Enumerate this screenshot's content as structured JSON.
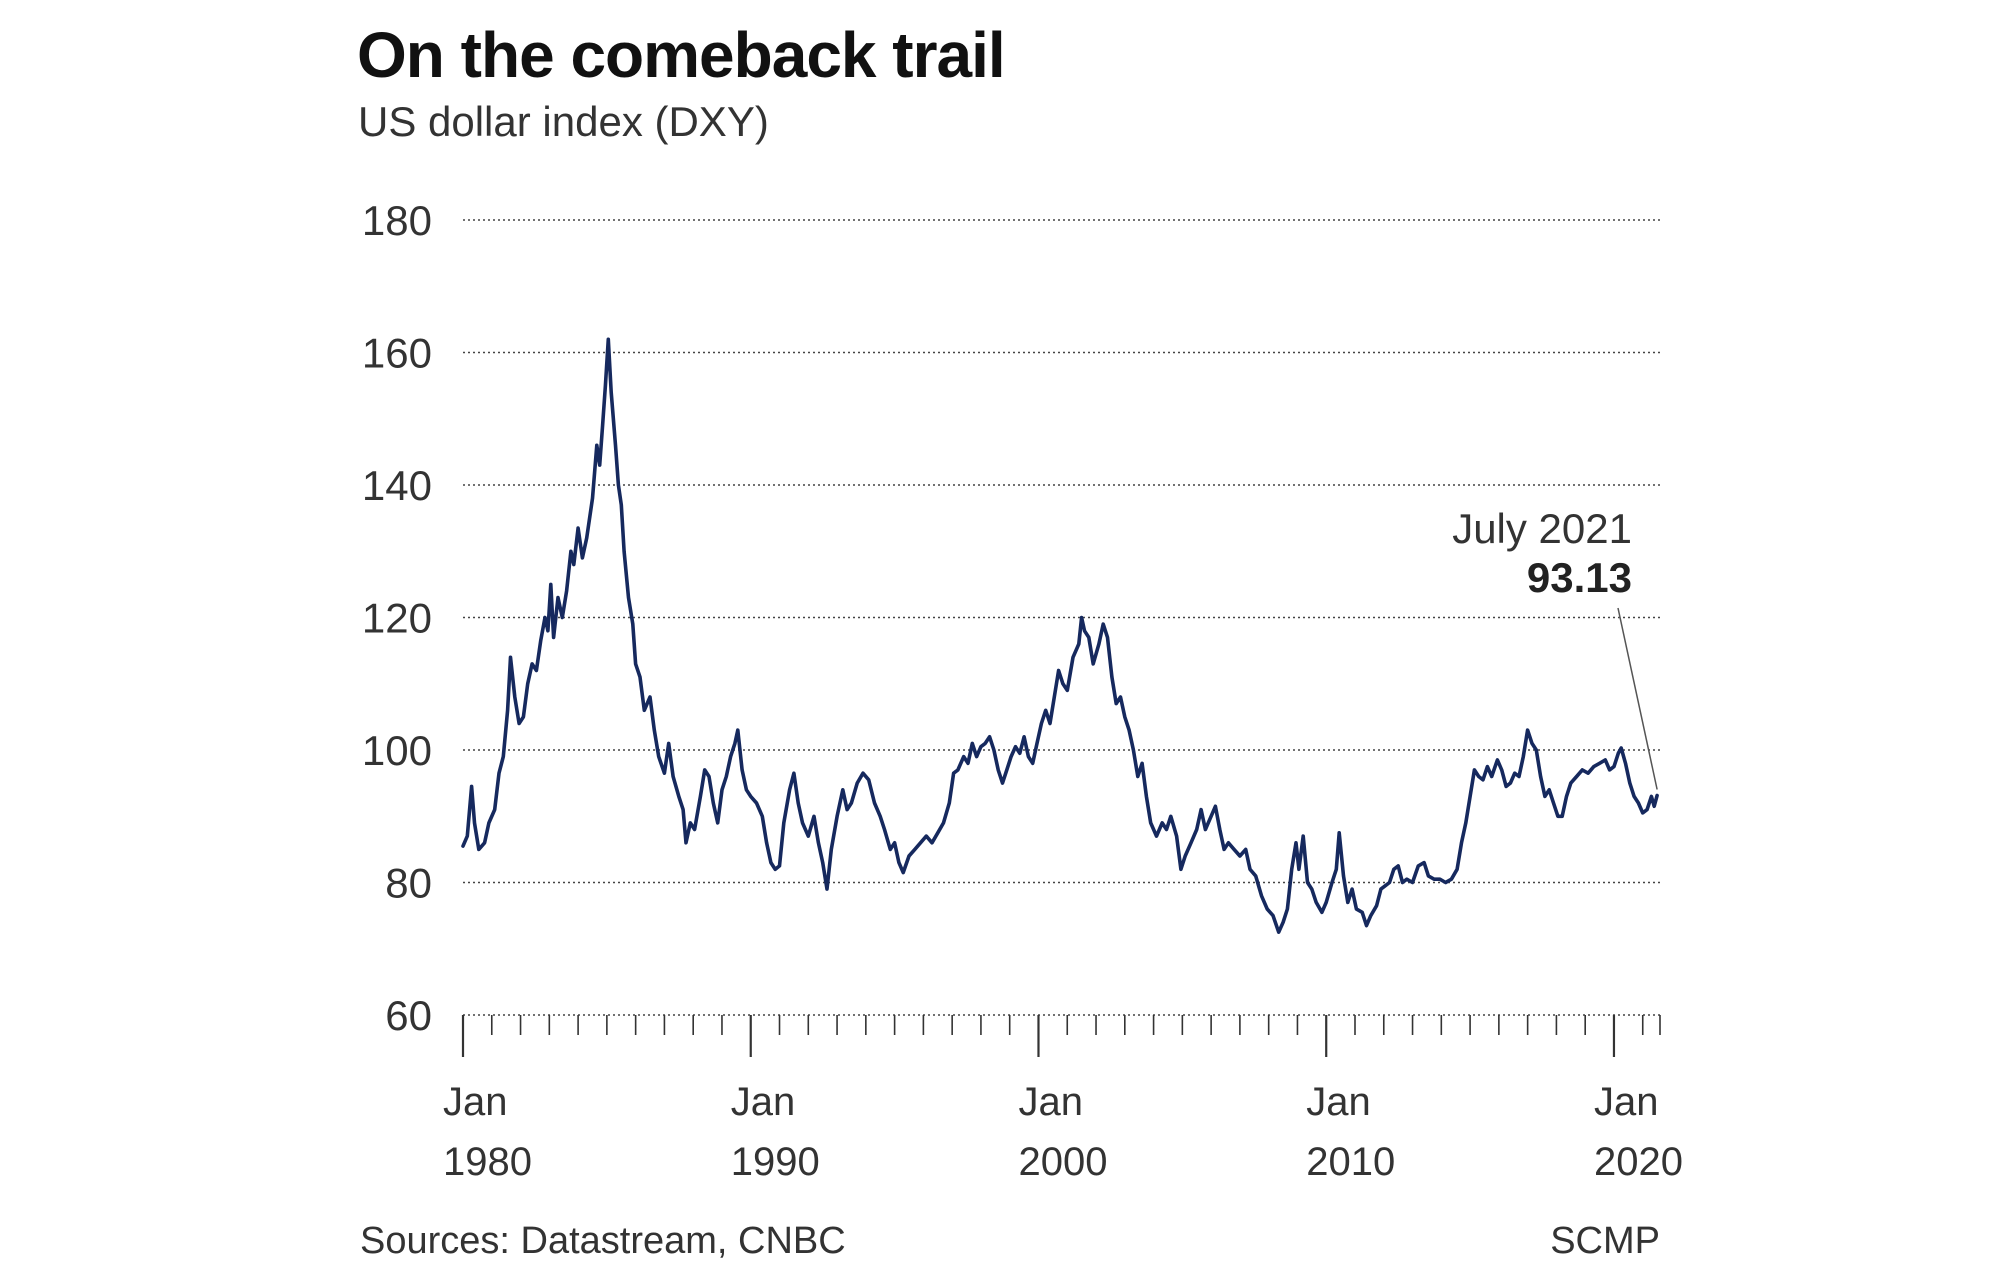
{
  "header": {
    "title": "On the comeback trail",
    "subtitle": "US dollar index (DXY)"
  },
  "footer": {
    "sources": "Sources: Datastream, CNBC",
    "credit": "SCMP"
  },
  "colors": {
    "line": "#16295e",
    "grid": "#444444",
    "text": "#333333"
  },
  "chart_data": {
    "type": "line",
    "title": "On the comeback trail",
    "subtitle": "US dollar index (DXY)",
    "xlabel": "",
    "ylabel": "",
    "ylim": [
      60,
      180
    ],
    "xlim": [
      1980.0,
      2021.6
    ],
    "grid": true,
    "y_ticks": [
      {
        "value": 60,
        "label": "60"
      },
      {
        "value": 80,
        "label": "80"
      },
      {
        "value": 100,
        "label": "100"
      },
      {
        "value": 120,
        "label": "120"
      },
      {
        "value": 140,
        "label": "140"
      },
      {
        "value": 160,
        "label": "160"
      },
      {
        "value": 180,
        "label": "180"
      }
    ],
    "x_ticks": [
      {
        "value": 1980,
        "line1": "Jan",
        "line2": "1980"
      },
      {
        "value": 1990,
        "line1": "Jan",
        "line2": "1990"
      },
      {
        "value": 2000,
        "line1": "Jan",
        "line2": "2000"
      },
      {
        "value": 2010,
        "line1": "Jan",
        "line2": "2010"
      },
      {
        "value": 2020,
        "line1": "Jan",
        "line2": "2020"
      }
    ],
    "annotation": {
      "label": "July 2021",
      "value_label": "93.13",
      "x": 2021.5,
      "y": 93.13
    },
    "series": [
      {
        "points": [
          [
            1980.0,
            85.5
          ],
          [
            1980.15,
            87
          ],
          [
            1980.3,
            94.5
          ],
          [
            1980.4,
            89
          ],
          [
            1980.55,
            85
          ],
          [
            1980.75,
            86
          ],
          [
            1980.9,
            89
          ],
          [
            1981.1,
            91
          ],
          [
            1981.25,
            96.5
          ],
          [
            1981.4,
            99
          ],
          [
            1981.55,
            106
          ],
          [
            1981.65,
            114
          ],
          [
            1981.8,
            108
          ],
          [
            1981.95,
            104
          ],
          [
            1982.1,
            105
          ],
          [
            1982.25,
            110
          ],
          [
            1982.4,
            113
          ],
          [
            1982.55,
            112
          ],
          [
            1982.7,
            116.5
          ],
          [
            1982.85,
            120
          ],
          [
            1982.95,
            118
          ],
          [
            1983.05,
            125
          ],
          [
            1983.15,
            117
          ],
          [
            1983.3,
            123
          ],
          [
            1983.45,
            120
          ],
          [
            1983.6,
            124
          ],
          [
            1983.75,
            130
          ],
          [
            1983.85,
            128
          ],
          [
            1984.0,
            133.5
          ],
          [
            1984.15,
            129
          ],
          [
            1984.3,
            132
          ],
          [
            1984.5,
            138
          ],
          [
            1984.65,
            146
          ],
          [
            1984.75,
            143
          ],
          [
            1984.85,
            149
          ],
          [
            1984.95,
            155
          ],
          [
            1985.05,
            162
          ],
          [
            1985.15,
            154
          ],
          [
            1985.3,
            146
          ],
          [
            1985.4,
            140
          ],
          [
            1985.5,
            137
          ],
          [
            1985.6,
            130
          ],
          [
            1985.75,
            123
          ],
          [
            1985.9,
            119
          ],
          [
            1986.0,
            113
          ],
          [
            1986.15,
            111
          ],
          [
            1986.3,
            106
          ],
          [
            1986.5,
            108
          ],
          [
            1986.65,
            103
          ],
          [
            1986.8,
            99
          ],
          [
            1987.0,
            96.5
          ],
          [
            1987.15,
            101
          ],
          [
            1987.3,
            96
          ],
          [
            1987.5,
            93
          ],
          [
            1987.65,
            91
          ],
          [
            1987.75,
            86
          ],
          [
            1987.9,
            89
          ],
          [
            1988.05,
            88
          ],
          [
            1988.25,
            93
          ],
          [
            1988.4,
            97
          ],
          [
            1988.55,
            96
          ],
          [
            1988.7,
            92
          ],
          [
            1988.85,
            89
          ],
          [
            1989.0,
            94
          ],
          [
            1989.15,
            96
          ],
          [
            1989.3,
            99
          ],
          [
            1989.45,
            101
          ],
          [
            1989.55,
            103
          ],
          [
            1989.7,
            97
          ],
          [
            1989.85,
            94
          ],
          [
            1990.0,
            93
          ],
          [
            1990.2,
            92
          ],
          [
            1990.4,
            90
          ],
          [
            1990.55,
            86
          ],
          [
            1990.7,
            83
          ],
          [
            1990.85,
            82
          ],
          [
            1991.0,
            82.5
          ],
          [
            1991.15,
            89
          ],
          [
            1991.35,
            94
          ],
          [
            1991.5,
            96.5
          ],
          [
            1991.65,
            92
          ],
          [
            1991.8,
            89
          ],
          [
            1992.0,
            87
          ],
          [
            1992.2,
            90
          ],
          [
            1992.35,
            86
          ],
          [
            1992.5,
            83
          ],
          [
            1992.65,
            79
          ],
          [
            1992.8,
            85
          ],
          [
            1993.0,
            90
          ],
          [
            1993.2,
            94
          ],
          [
            1993.35,
            91
          ],
          [
            1993.5,
            92
          ],
          [
            1993.7,
            95
          ],
          [
            1993.9,
            96.5
          ],
          [
            1994.1,
            95.5
          ],
          [
            1994.3,
            92
          ],
          [
            1994.5,
            90
          ],
          [
            1994.65,
            88
          ],
          [
            1994.85,
            85
          ],
          [
            1995.0,
            86
          ],
          [
            1995.15,
            83
          ],
          [
            1995.3,
            81.5
          ],
          [
            1995.5,
            84
          ],
          [
            1995.7,
            85
          ],
          [
            1995.9,
            86
          ],
          [
            1996.1,
            87
          ],
          [
            1996.3,
            86
          ],
          [
            1996.5,
            87.5
          ],
          [
            1996.7,
            89
          ],
          [
            1996.9,
            92
          ],
          [
            1997.05,
            96.5
          ],
          [
            1997.2,
            97
          ],
          [
            1997.4,
            99
          ],
          [
            1997.55,
            98
          ],
          [
            1997.7,
            101
          ],
          [
            1997.85,
            99
          ],
          [
            1998.0,
            100.5
          ],
          [
            1998.15,
            101
          ],
          [
            1998.3,
            102
          ],
          [
            1998.45,
            100
          ],
          [
            1998.6,
            97
          ],
          [
            1998.75,
            95
          ],
          [
            1998.9,
            97
          ],
          [
            1999.05,
            99
          ],
          [
            1999.2,
            100.5
          ],
          [
            1999.35,
            99.5
          ],
          [
            1999.5,
            102
          ],
          [
            1999.65,
            99
          ],
          [
            1999.8,
            98
          ],
          [
            1999.95,
            101
          ],
          [
            2000.1,
            104
          ],
          [
            2000.25,
            106
          ],
          [
            2000.4,
            104
          ],
          [
            2000.55,
            108
          ],
          [
            2000.7,
            112
          ],
          [
            2000.85,
            110
          ],
          [
            2001.0,
            109
          ],
          [
            2001.2,
            114
          ],
          [
            2001.4,
            116
          ],
          [
            2001.5,
            120
          ],
          [
            2001.6,
            118
          ],
          [
            2001.75,
            117
          ],
          [
            2001.9,
            113
          ],
          [
            2002.1,
            116
          ],
          [
            2002.25,
            119
          ],
          [
            2002.4,
            117
          ],
          [
            2002.55,
            111
          ],
          [
            2002.7,
            107
          ],
          [
            2002.85,
            108
          ],
          [
            2003.0,
            105
          ],
          [
            2003.15,
            103
          ],
          [
            2003.3,
            100
          ],
          [
            2003.45,
            96
          ],
          [
            2003.6,
            98
          ],
          [
            2003.75,
            93
          ],
          [
            2003.9,
            89
          ],
          [
            2004.1,
            87
          ],
          [
            2004.3,
            89
          ],
          [
            2004.45,
            88
          ],
          [
            2004.6,
            90
          ],
          [
            2004.8,
            87
          ],
          [
            2004.95,
            82
          ],
          [
            2005.1,
            84
          ],
          [
            2005.3,
            86
          ],
          [
            2005.5,
            88
          ],
          [
            2005.65,
            91
          ],
          [
            2005.8,
            88
          ],
          [
            2006.0,
            90
          ],
          [
            2006.15,
            91.5
          ],
          [
            2006.3,
            88
          ],
          [
            2006.45,
            85
          ],
          [
            2006.6,
            86
          ],
          [
            2006.8,
            85
          ],
          [
            2007.0,
            84
          ],
          [
            2007.2,
            85
          ],
          [
            2007.35,
            82
          ],
          [
            2007.55,
            81
          ],
          [
            2007.75,
            78
          ],
          [
            2007.95,
            76
          ],
          [
            2008.15,
            75
          ],
          [
            2008.35,
            72.5
          ],
          [
            2008.5,
            74
          ],
          [
            2008.65,
            76
          ],
          [
            2008.8,
            82
          ],
          [
            2008.95,
            86
          ],
          [
            2009.05,
            82
          ],
          [
            2009.2,
            87
          ],
          [
            2009.35,
            80
          ],
          [
            2009.5,
            79
          ],
          [
            2009.65,
            77
          ],
          [
            2009.85,
            75.5
          ],
          [
            2010.0,
            77
          ],
          [
            2010.2,
            80
          ],
          [
            2010.35,
            82
          ],
          [
            2010.45,
            87.5
          ],
          [
            2010.6,
            81
          ],
          [
            2010.75,
            77
          ],
          [
            2010.9,
            79
          ],
          [
            2011.05,
            76
          ],
          [
            2011.25,
            75.5
          ],
          [
            2011.4,
            73.5
          ],
          [
            2011.55,
            75
          ],
          [
            2011.75,
            76.5
          ],
          [
            2011.9,
            79
          ],
          [
            2012.05,
            79.5
          ],
          [
            2012.2,
            80
          ],
          [
            2012.35,
            82
          ],
          [
            2012.5,
            82.5
          ],
          [
            2012.65,
            80
          ],
          [
            2012.8,
            80.5
          ],
          [
            2013.0,
            80
          ],
          [
            2013.2,
            82.5
          ],
          [
            2013.4,
            83
          ],
          [
            2013.55,
            81
          ],
          [
            2013.75,
            80.5
          ],
          [
            2013.95,
            80.5
          ],
          [
            2014.15,
            80
          ],
          [
            2014.35,
            80.5
          ],
          [
            2014.55,
            82
          ],
          [
            2014.7,
            86
          ],
          [
            2014.85,
            89
          ],
          [
            2015.0,
            93
          ],
          [
            2015.15,
            97
          ],
          [
            2015.3,
            96
          ],
          [
            2015.45,
            95.5
          ],
          [
            2015.6,
            97.5
          ],
          [
            2015.75,
            96
          ],
          [
            2015.95,
            98.5
          ],
          [
            2016.1,
            97
          ],
          [
            2016.25,
            94.5
          ],
          [
            2016.4,
            95
          ],
          [
            2016.55,
            96.5
          ],
          [
            2016.7,
            96
          ],
          [
            2016.85,
            99
          ],
          [
            2017.0,
            103
          ],
          [
            2017.15,
            101
          ],
          [
            2017.3,
            100
          ],
          [
            2017.45,
            96
          ],
          [
            2017.6,
            93
          ],
          [
            2017.75,
            94
          ],
          [
            2017.9,
            92
          ],
          [
            2018.05,
            90
          ],
          [
            2018.2,
            90
          ],
          [
            2018.35,
            93
          ],
          [
            2018.5,
            95
          ],
          [
            2018.7,
            96
          ],
          [
            2018.9,
            97
          ],
          [
            2019.1,
            96.5
          ],
          [
            2019.3,
            97.5
          ],
          [
            2019.5,
            98
          ],
          [
            2019.7,
            98.5
          ],
          [
            2019.85,
            97
          ],
          [
            2020.0,
            97.5
          ],
          [
            2020.15,
            99.5
          ],
          [
            2020.25,
            100.3
          ],
          [
            2020.4,
            98
          ],
          [
            2020.55,
            95
          ],
          [
            2020.7,
            93
          ],
          [
            2020.85,
            92
          ],
          [
            2021.0,
            90.5
          ],
          [
            2021.15,
            91
          ],
          [
            2021.3,
            93
          ],
          [
            2021.4,
            91.5
          ],
          [
            2021.5,
            93.13
          ]
        ]
      }
    ]
  }
}
